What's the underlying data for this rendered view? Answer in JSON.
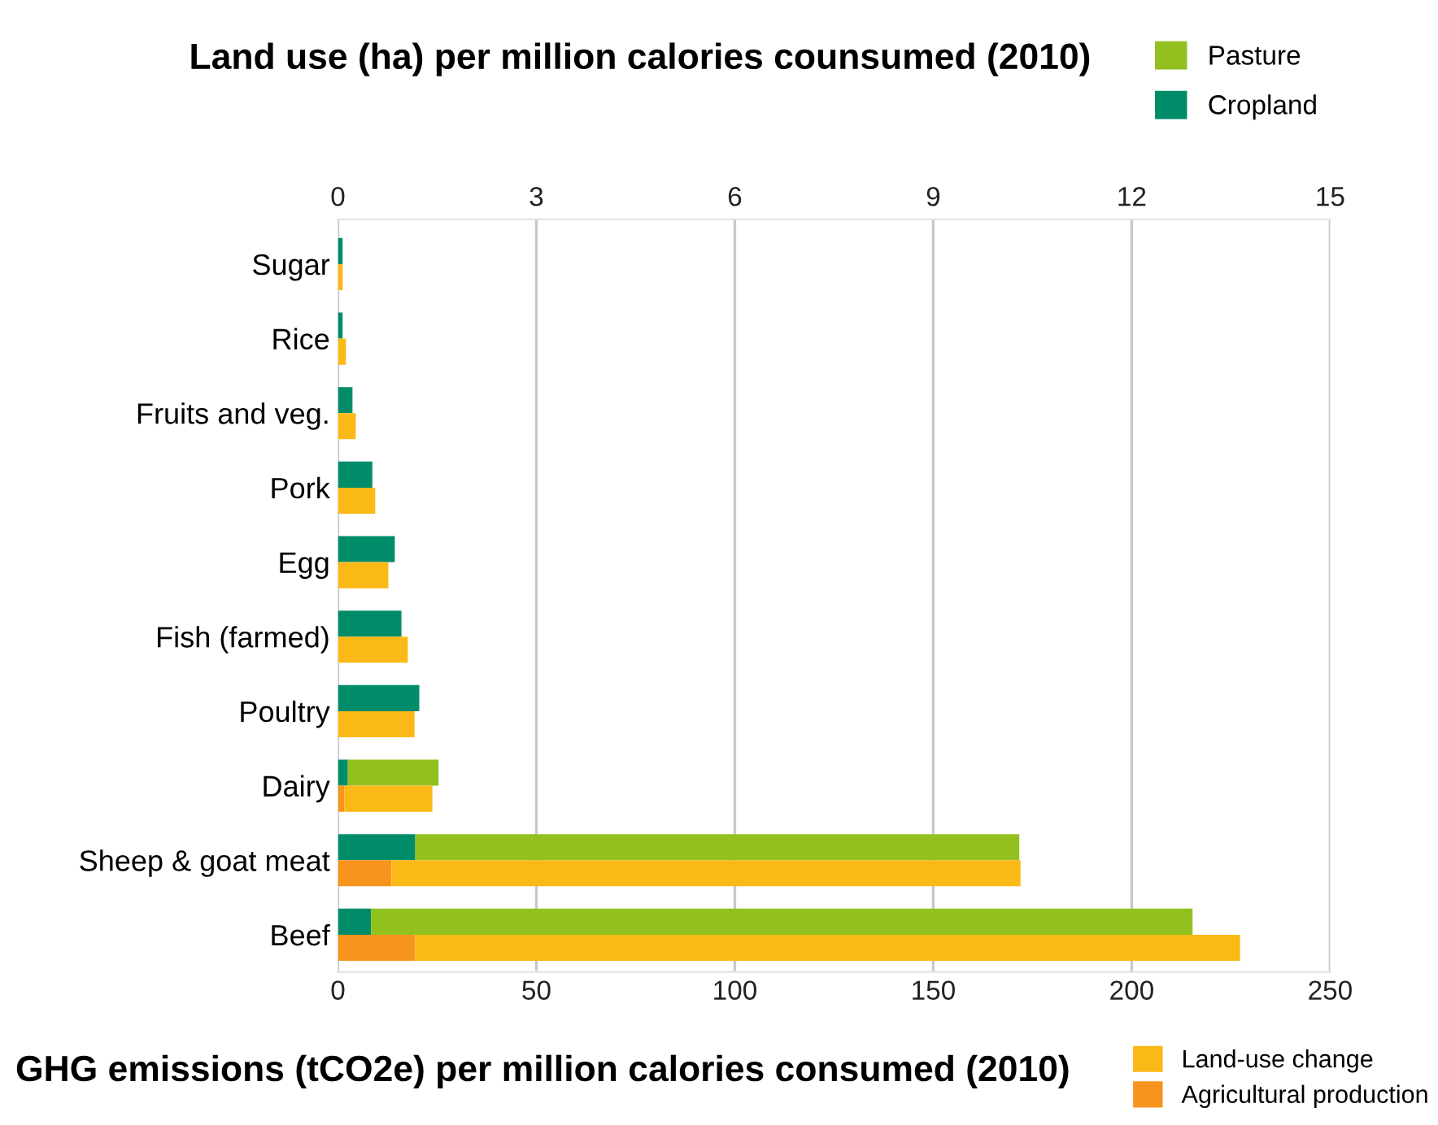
{
  "chart_data": [
    {
      "type": "bar",
      "orientation": "horizontal",
      "stacked": true,
      "xlabel": "Land use (ha) per million calories counsumed (2010)",
      "categories": [
        "Sugar",
        "Rice",
        "Fruits and veg.",
        "Pork",
        "Egg",
        "Fish (farmed)",
        "Poultry",
        "Dairy",
        "Sheep & goat meat",
        "Beef"
      ],
      "series": [
        {
          "name": "Cropland",
          "color": "#008c69",
          "values": [
            0.07,
            0.07,
            0.22,
            0.52,
            0.86,
            0.96,
            1.23,
            0.15,
            1.17,
            0.5
          ]
        },
        {
          "name": "Pasture",
          "color": "#92c01f",
          "values": [
            null,
            null,
            null,
            null,
            null,
            null,
            null,
            1.37,
            9.13,
            12.42
          ]
        }
      ],
      "xlim": [
        0,
        15
      ],
      "xticks": [
        0,
        3,
        6,
        9,
        12,
        15
      ],
      "grid": "x",
      "legend": "top right"
    },
    {
      "type": "bar",
      "orientation": "horizontal",
      "stacked": true,
      "xlabel": "GHG emissions (tCO2e) per million calories consumed (2010)",
      "categories": [
        null,
        null,
        null,
        null,
        null,
        null,
        null,
        null,
        null,
        null
      ],
      "series": [
        {
          "name": "Agricultural production",
          "color": "#f7941d",
          "values": [
            null,
            null,
            null,
            null,
            null,
            null,
            null,
            1.6,
            13.5,
            19.4
          ]
        },
        {
          "name": "Land-use change",
          "color": "#fbb917",
          "values": [
            1.2,
            2.0,
            4.5,
            9.4,
            12.7,
            17.6,
            19.3,
            22.2,
            158.5,
            207.9
          ]
        }
      ],
      "xlim": [
        0,
        250
      ],
      "xticks": [
        0,
        50,
        100,
        150,
        200,
        250
      ],
      "legend": "bottom right"
    }
  ]
}
